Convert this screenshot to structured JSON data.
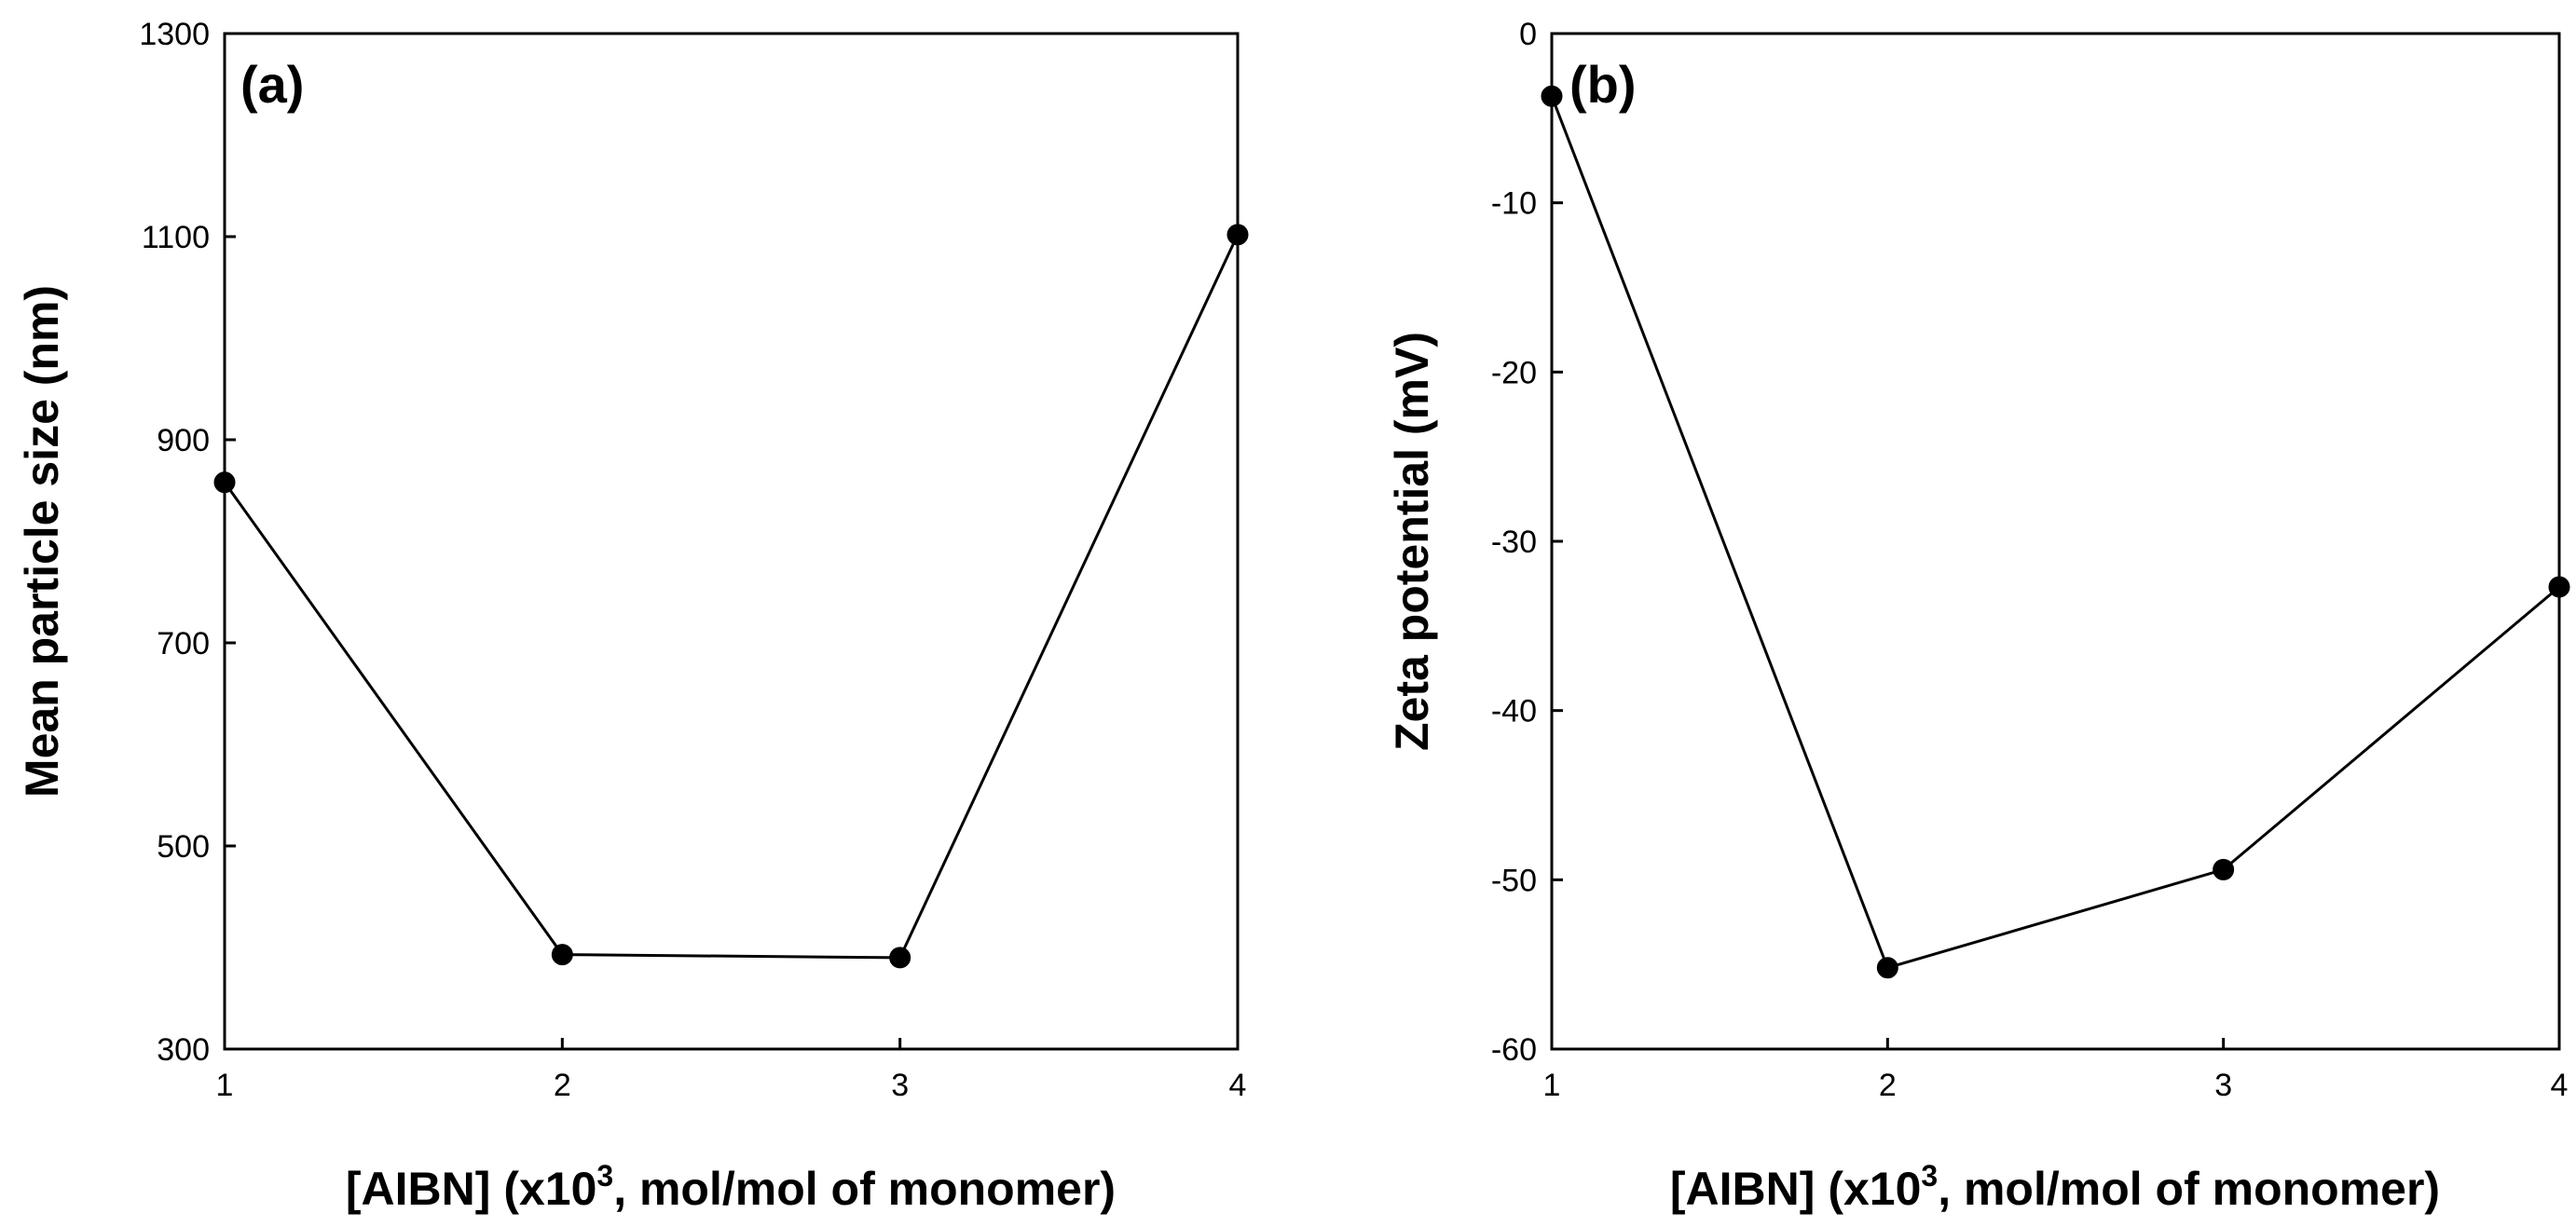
{
  "chart_data": [
    {
      "type": "line",
      "panel_label": "(a)",
      "x": [
        1,
        2,
        3,
        4
      ],
      "series": [
        {
          "values": [
            858,
            393,
            390,
            1102
          ]
        }
      ],
      "xlabel_main": "[AIBN] (x10",
      "xlabel_sup": "3",
      "xlabel_tail": ", mol/mol of monomer)",
      "ylabel": "Mean particle size (nm)",
      "xlim": [
        1,
        4
      ],
      "ylim": [
        300,
        1300
      ],
      "xticks": [
        1,
        2,
        3,
        4
      ],
      "yticks": [
        300,
        500,
        700,
        900,
        1100,
        1300
      ],
      "grid": false,
      "legend": "none",
      "line_color": "#000000",
      "marker_color": "#000000"
    },
    {
      "type": "line",
      "panel_label": "(b)",
      "x": [
        1,
        2,
        3,
        4
      ],
      "series": [
        {
          "values": [
            -3.7,
            -55.2,
            -49.4,
            -32.7
          ]
        }
      ],
      "xlabel_main": "[AIBN] (x10",
      "xlabel_sup": "3",
      "xlabel_tail": ", mol/mol of monomer)",
      "ylabel": "Zeta potential (mV)",
      "xlim": [
        1,
        4
      ],
      "ylim": [
        -60,
        0
      ],
      "xticks": [
        1,
        2,
        3,
        4
      ],
      "yticks": [
        -60,
        -50,
        -40,
        -30,
        -20,
        -10,
        0
      ],
      "grid": false,
      "legend": "none",
      "line_color": "#000000",
      "marker_color": "#000000"
    }
  ]
}
